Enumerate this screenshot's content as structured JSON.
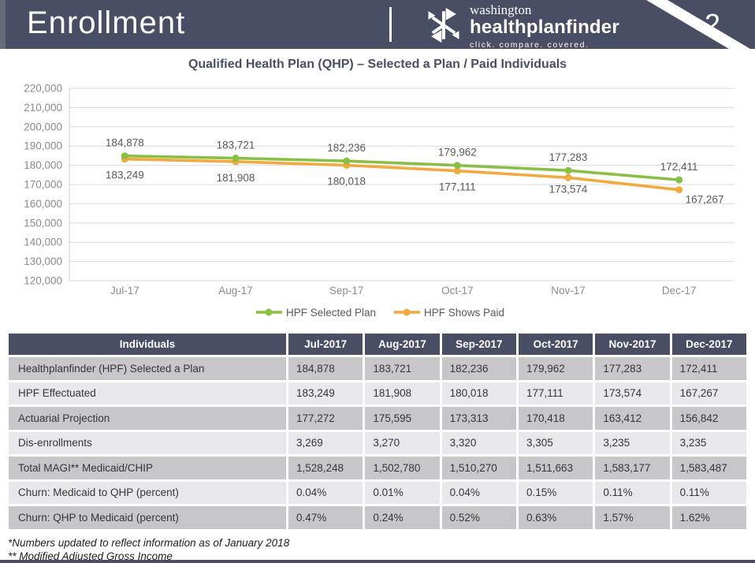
{
  "header": {
    "title": "Enrollment",
    "page_number": "2",
    "logo": {
      "icon": "snowflake-logo-icon",
      "top": "washington",
      "main": "healthplanfinder",
      "tagline": "click. compare. covered."
    }
  },
  "chart": {
    "title": "Qualified Health Plan (QHP) – Selected a Plan / Paid Individuals"
  },
  "chart_data": {
    "type": "line",
    "title": "Qualified Health Plan (QHP) – Selected a Plan / Paid Individuals",
    "categories": [
      "Jul-17",
      "Aug-17",
      "Sep-17",
      "Oct-17",
      "Nov-17",
      "Dec-17"
    ],
    "series": [
      {
        "name": "HPF Selected Plan",
        "color": "#8abf45",
        "values": [
          184878,
          183721,
          182236,
          179962,
          177283,
          172411
        ]
      },
      {
        "name": "HPF Shows Paid",
        "color": "#f2a93d",
        "values": [
          183249,
          181908,
          180018,
          177111,
          173574,
          167267
        ]
      }
    ],
    "ylim": [
      120000,
      220000
    ],
    "ytick_step": 10000,
    "grid": true,
    "data_labels": true,
    "legend_position": "bottom",
    "xlabel": "",
    "ylabel": ""
  },
  "table": {
    "headers": [
      "Individuals",
      "Jul-2017",
      "Aug-2017",
      "Sep-2017",
      "Oct-2017",
      "Nov-2017",
      "Dec-2017"
    ],
    "rows": [
      {
        "label": "Healthplanfinder (HPF) Selected a Plan",
        "values": [
          "184,878",
          "183,721",
          "182,236",
          "179,962",
          "177,283",
          "172,411"
        ]
      },
      {
        "label": "HPF Effectuated",
        "values": [
          "183,249",
          "181,908",
          "180,018",
          "177,111",
          "173,574",
          "167,267"
        ]
      },
      {
        "label": "Actuarial Projection",
        "values": [
          "177,272",
          "175,595",
          "173,313",
          "170,418",
          "163,412",
          "156,842"
        ]
      },
      {
        "label": "Dis-enrollments",
        "values": [
          "3,269",
          "3,270",
          "3,320",
          "3,305",
          "3,235",
          "3,235"
        ]
      },
      {
        "label": "Total MAGI** Medicaid/CHIP",
        "values": [
          "1,528,248",
          "1,502,780",
          "1,510,270",
          "1,511,663",
          "1,583,177",
          "1,583,487"
        ]
      },
      {
        "label": "Churn: Medicaid to QHP (percent)",
        "values": [
          "0.04%",
          "0.01%",
          "0.04%",
          "0.15%",
          "0.11%",
          "0.11%"
        ]
      },
      {
        "label": "Churn: QHP to Medicaid (percent)",
        "values": [
          "0.47%",
          "0.24%",
          "0.52%",
          "0.63%",
          "1.57%",
          "1.62%"
        ]
      }
    ]
  },
  "footnotes": [
    "*Numbers updated to reflect information as of January 2018",
    "** Modified Adjusted Gross Income"
  ],
  "colors": {
    "navy": "#4a4e64",
    "green": "#8abf45",
    "orange": "#f2a93d",
    "row_dark": "#c7c7c9",
    "row_light": "#e8e8ea",
    "gridline": "#d9d9d9",
    "axis_label": "#8c8c8c",
    "data_label": "#595959"
  }
}
